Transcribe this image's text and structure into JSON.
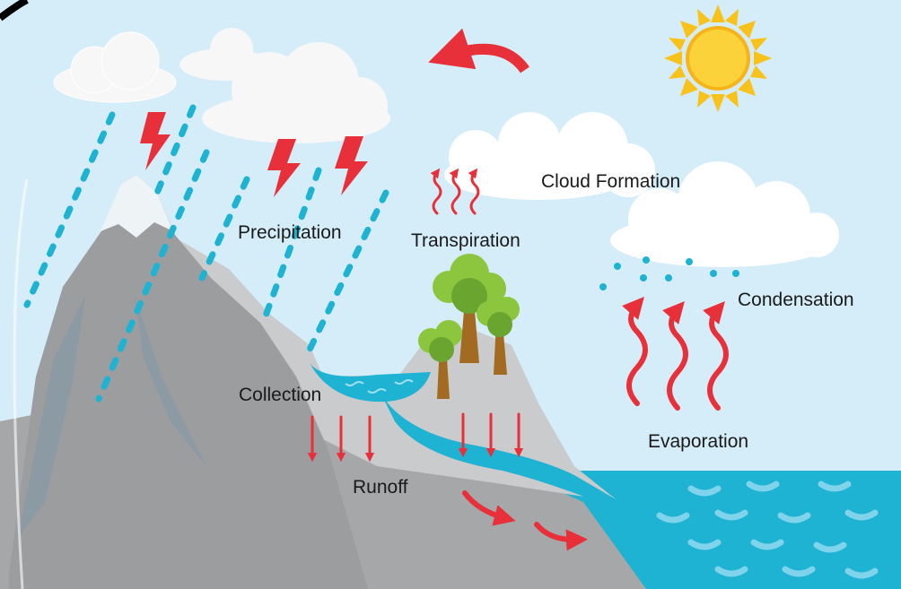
{
  "labels": {
    "precipitation": "Precipitation",
    "transpiration": "Transpiration",
    "cloud_formation": "Cloud Formation",
    "condensation": "Condensation",
    "collection": "Collection",
    "evaporation": "Evaporation",
    "runoff": "Runoff"
  }
}
